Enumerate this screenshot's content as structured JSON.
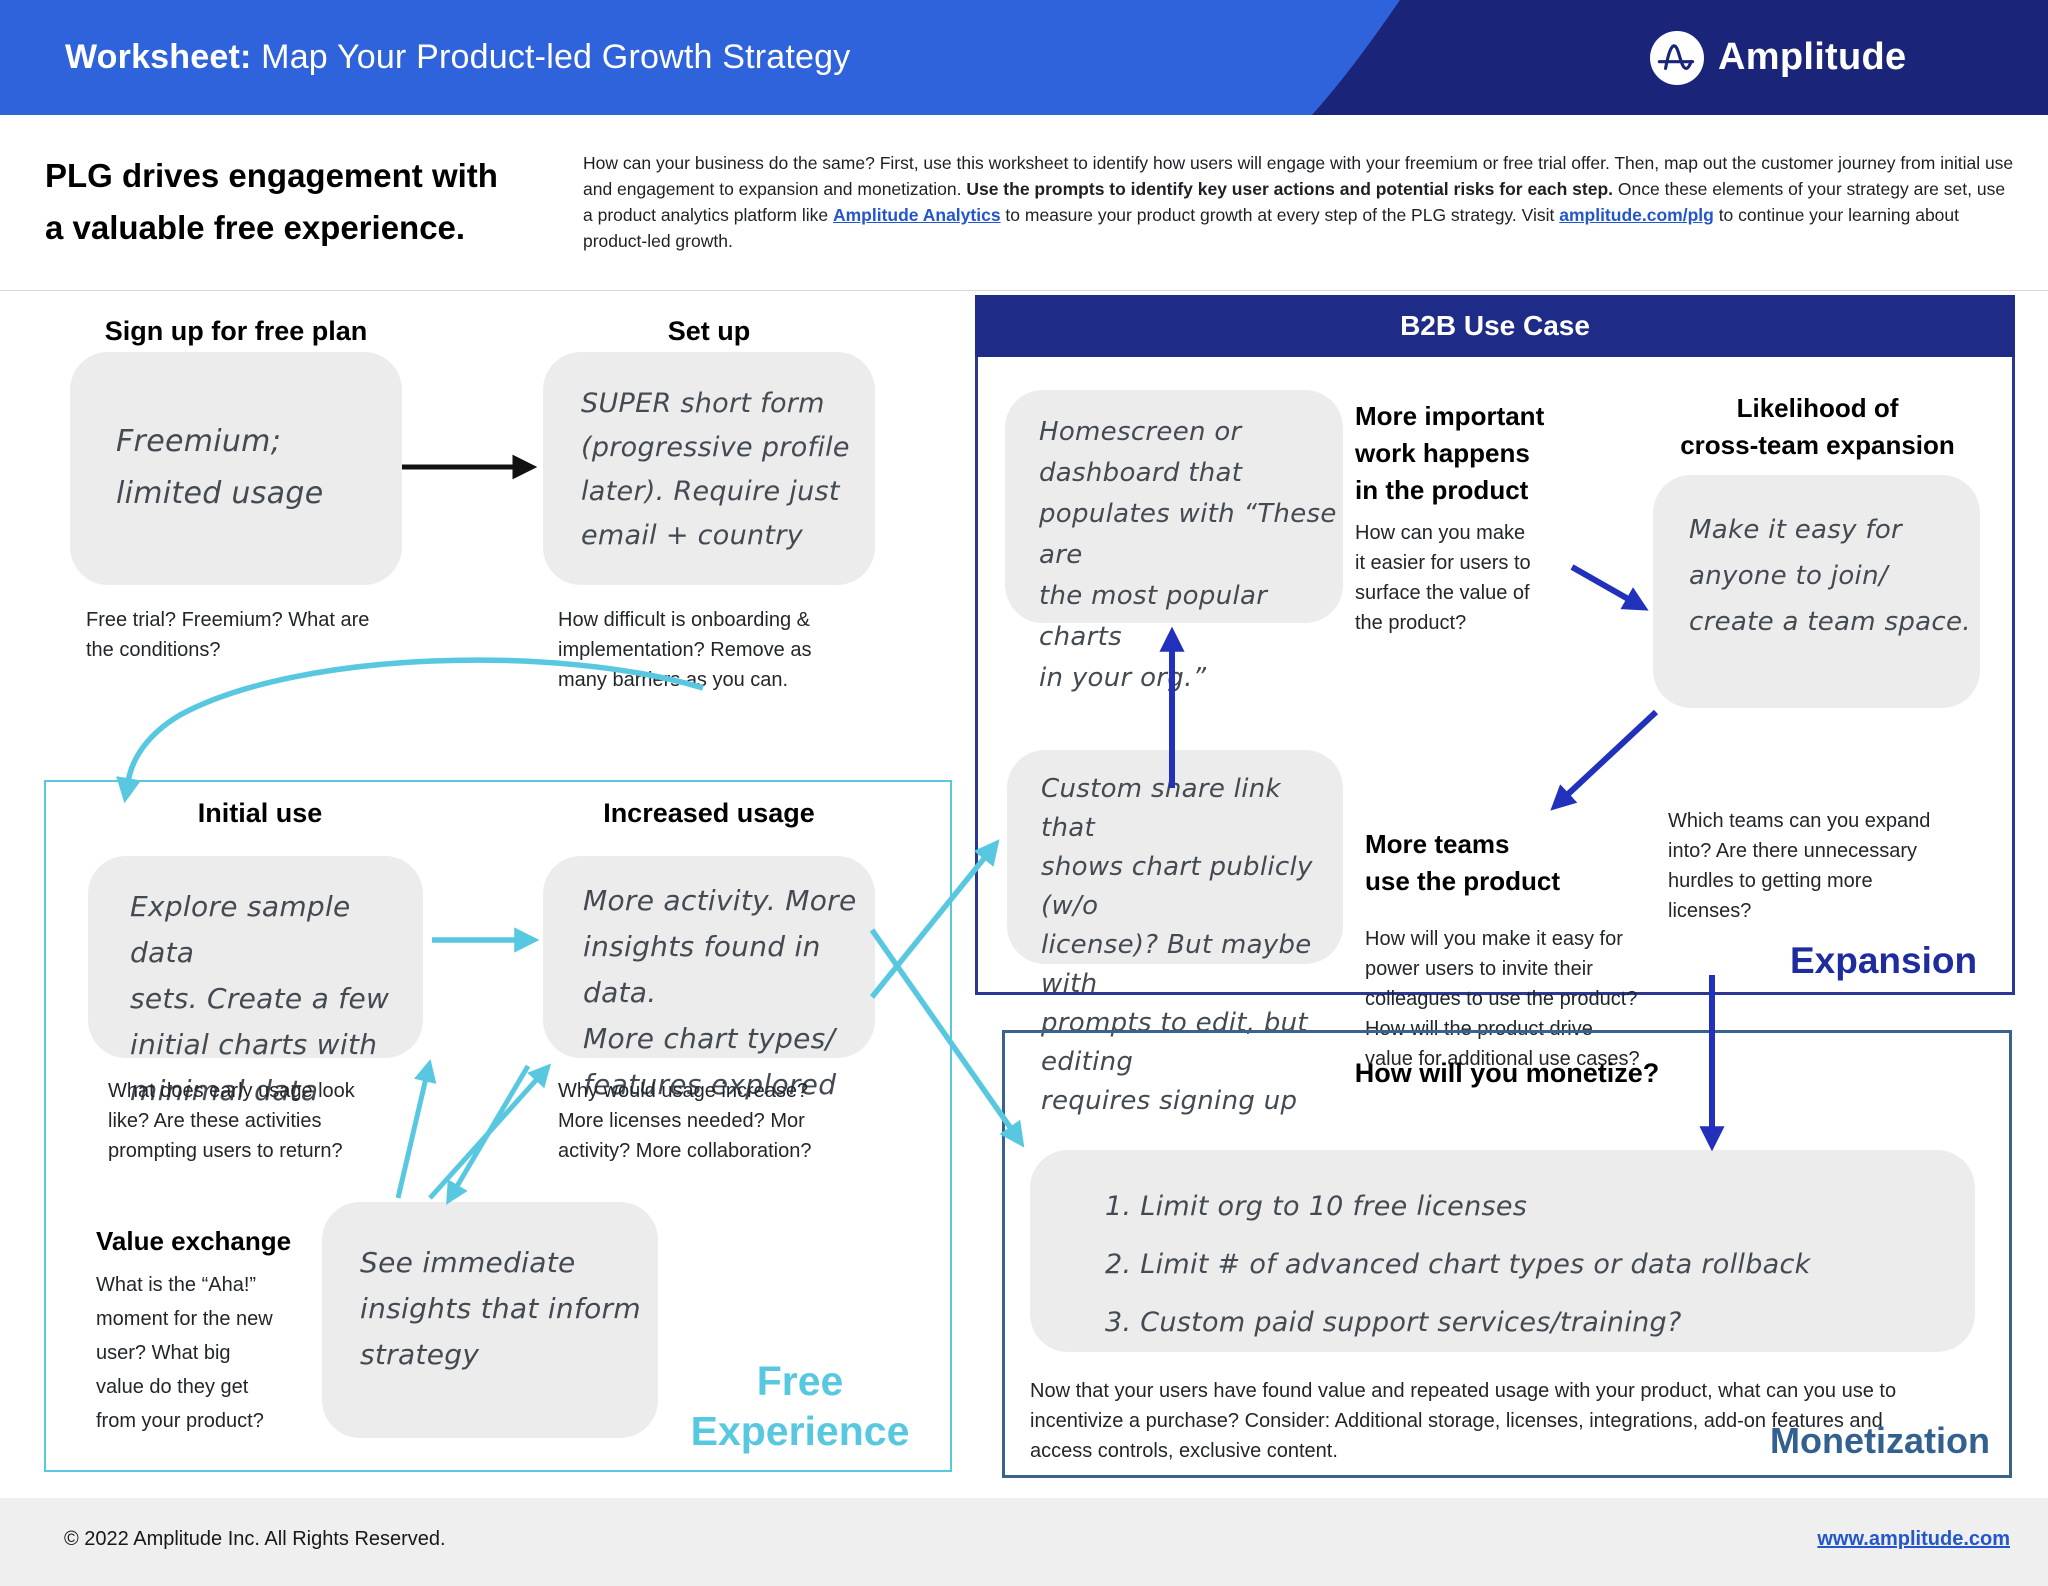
{
  "colors": {
    "header_blue": "#2f63dc",
    "header_corner_navy": "#1a2478",
    "b2b_navy": "#1f2c87",
    "arrow_navy": "#2231bb",
    "teal": "#58c8e1",
    "monetization_steel": "#32618f",
    "link_blue": "#2456cb",
    "note_box_gray": "#ececec"
  },
  "header": {
    "title_bold": "Worksheet:",
    "title_rest": " Map Your Product-led Growth Strategy",
    "brand": "Amplitude",
    "logo_icon": "amplitude-wave-icon"
  },
  "intro": {
    "heading_lines": [
      "PLG drives engagement with",
      "a valuable free experience."
    ],
    "paragraph_runs": [
      {
        "style": "normal",
        "text": "How can your business do the same? First, use this worksheet to identify how users will engage with your freemium or free trial offer. Then, map out the customer journey from initial use and engagement to expansion and monetization. "
      },
      {
        "style": "bold",
        "text": "Use the prompts to identify key user actions and potential risks for each step."
      },
      {
        "style": "normal",
        "text": " Once these elements of your strategy are set, use a product analytics platform like "
      },
      {
        "style": "link",
        "text": "Amplitude Analytics"
      },
      {
        "style": "normal",
        "text": " to measure your product growth at every step of the PLG strategy. Visit "
      },
      {
        "style": "link",
        "text": "amplitude.com/plg"
      },
      {
        "style": "normal",
        "text": " to continue your learning about product-led growth."
      }
    ]
  },
  "signup": {
    "heading": "Sign up for free plan",
    "note_lines": [
      "Freemium;",
      "limited usage"
    ],
    "caption_lines": [
      "Free trial? Freemium? What are",
      "the conditions?"
    ]
  },
  "setup": {
    "heading": "Set up",
    "note_lines": [
      "SUPER short form",
      "(progressive profile",
      "later). Require just",
      "email + country"
    ],
    "caption_lines": [
      "How difficult is onboarding &",
      "implementation? Remove as",
      "many barriers as you can."
    ]
  },
  "free_experience": {
    "label_lines": [
      "Free",
      "Experience"
    ],
    "initial_use": {
      "heading": "Initial use",
      "note_lines": [
        "Explore sample data",
        "sets. Create a few",
        "initial charts with",
        "minimal data"
      ],
      "caption_lines": [
        "What does early usage look",
        "like? Are these activities",
        "prompting users to return?"
      ]
    },
    "increased_usage": {
      "heading": "Increased usage",
      "note_lines": [
        "More activity. More",
        "insights found in data.",
        "More chart types/",
        "features explored"
      ],
      "caption_lines": [
        "Why would usage increase?",
        "More licenses needed? Mor",
        "activity? More collaboration?"
      ]
    },
    "value_exchange": {
      "heading": "Value exchange",
      "caption_lines": [
        "What is the “Aha!”",
        "moment for the new",
        "user? What big",
        "value do they get",
        "from your product?"
      ]
    },
    "insights_note_lines": [
      "See immediate",
      "insights that inform",
      "strategy"
    ]
  },
  "b2b": {
    "header": "B2B Use Case",
    "homescreen_note_lines": [
      "Homescreen or",
      "dashboard that",
      "populates with “These are",
      "the most popular charts",
      "in your org.”"
    ],
    "more_important": {
      "heading_lines": [
        "More important",
        "work happens",
        "in the product"
      ],
      "caption_lines": [
        "How can you make",
        "it easier for users to",
        "surface the value of",
        "the product?"
      ]
    },
    "likelihood": {
      "heading_lines": [
        "Likelihood of",
        "cross-team expansion"
      ],
      "note_lines": [
        "Make it easy for",
        "anyone to join/",
        "create a team space."
      ],
      "caption_lines": [
        "Which teams can you expand",
        "into? Are there unnecessary",
        "hurdles to getting more",
        "licenses?"
      ]
    },
    "more_teams": {
      "heading_lines": [
        "More teams",
        "use the product"
      ],
      "caption_lines": [
        "How will you make it easy for",
        "power users to invite their",
        "colleagues to use the product?",
        "How will the product drive",
        "value for additional use cases?"
      ]
    },
    "custom_share_note_lines": [
      "Custom share link that",
      "shows chart publicly (w/o",
      "license)?  But maybe with",
      "prompts to edit, but editing",
      "requires signing up"
    ],
    "expansion_label": "Expansion"
  },
  "monetization": {
    "heading": "How will you monetize?",
    "list_lines": [
      "1. Limit org to 10 free licenses",
      "2. Limit # of advanced chart types or data rollback",
      "3. Custom paid support services/training?"
    ],
    "caption_lines": [
      "Now that your users have found value and repeated usage with your product, what can you use to",
      "incentivize a purchase? Consider: Additional storage, licenses, integrations, add-on features and",
      "access controls, exclusive content."
    ],
    "label": "Monetization"
  },
  "footer": {
    "copyright": "© 2022 Amplitude Inc.  All Rights Reserved.",
    "link": "www.amplitude.com"
  }
}
